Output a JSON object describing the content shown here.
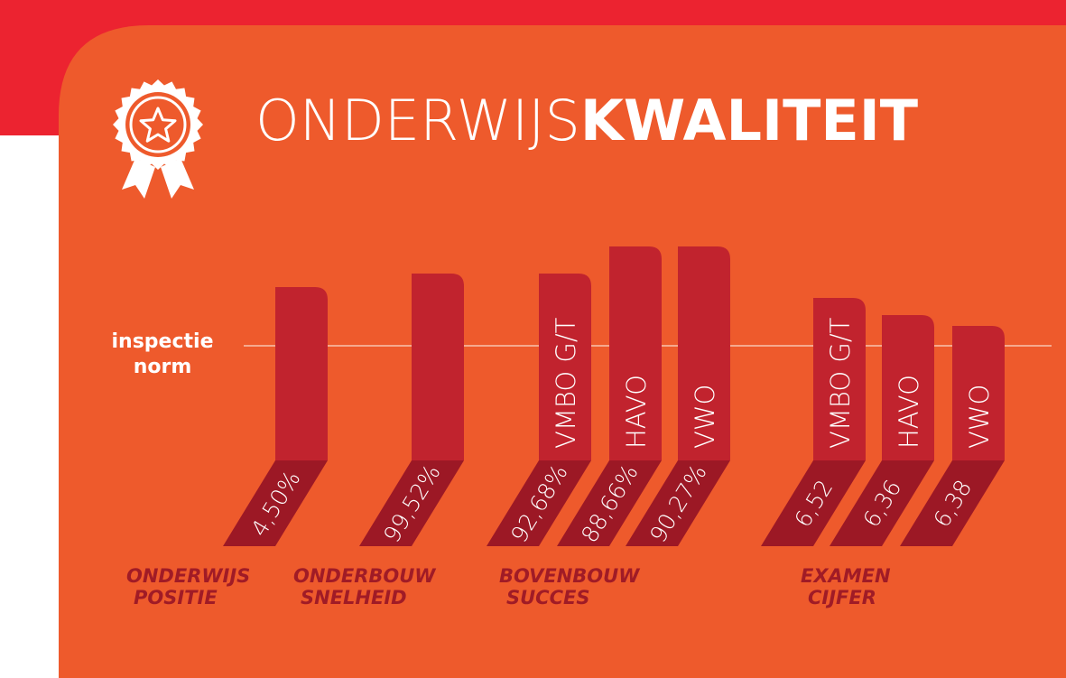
{
  "title": {
    "light": "ONDERWIJS",
    "bold": "KWALITEIT"
  },
  "norm_label": [
    "inspectie",
    "norm"
  ],
  "groups": [
    {
      "label": [
        "ONDERWIJS",
        "POSITIE"
      ],
      "bars": [
        {
          "value": "4,50%"
        }
      ]
    },
    {
      "label": [
        "ONDERBOUW",
        "SNELHEID"
      ],
      "bars": [
        {
          "value": "99,52%"
        }
      ]
    },
    {
      "label": [
        "BOVENBOUW",
        "SUCCES"
      ],
      "bars": [
        {
          "label": "VMBO G/T",
          "value": "92,68%"
        },
        {
          "label": "HAVO",
          "value": "88,66%"
        },
        {
          "label": "VWO",
          "value": "90,27%"
        }
      ]
    },
    {
      "label": [
        "EXAMEN",
        "CIJFER"
      ],
      "bars": [
        {
          "label": "VMBO G/T",
          "value": "6,52"
        },
        {
          "label": "HAVO",
          "value": "6,36"
        },
        {
          "label": "VWO",
          "value": "6,38"
        }
      ]
    }
  ]
}
